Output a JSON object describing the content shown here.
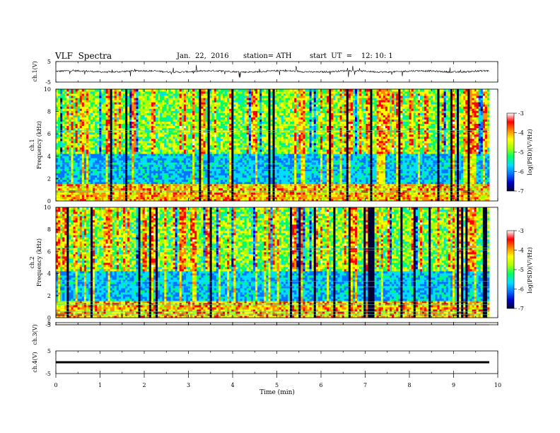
{
  "header": {
    "title": "VLF  Spectra",
    "date": "Jan.  22,  2016",
    "station": "station= ATH",
    "start": "start  UT  =    12: 10: 1"
  },
  "axes": {
    "ch1_wave_label": "ch.1(V)",
    "ch1_spec_label": "ch.1\nFrequency  (kHz)",
    "ch2_spec_label": "ch.2\nFrequency  (kHz)",
    "ch3_wave_label": "ch.3(V)",
    "ch4_wave_label": "ch.4(V)",
    "xlabel": "Time  (min)",
    "colorbar_label": "log(PSD)(V²/Hz)"
  },
  "colors": {
    "colormap": [
      "#000033",
      "#0000cc",
      "#0077ff",
      "#00ddff",
      "#00ff66",
      "#aaff00",
      "#ffff00",
      "#ff8800",
      "#ff0000",
      "#ffffff"
    ],
    "trace": "#000000"
  },
  "chart_data": [
    {
      "type": "line",
      "panel": "ch1-waveform",
      "ylabel": "ch.1(V)",
      "ylim": [
        -5,
        5
      ],
      "yticks": [
        "5",
        "-5"
      ],
      "xlim": [
        0,
        10
      ],
      "duration_min": 9.8,
      "series": [
        {
          "mean": 0.2,
          "noise_amplitude": 0.8,
          "spikes": true
        }
      ]
    },
    {
      "type": "heatmap",
      "panel": "ch1-spectrogram",
      "ylabel": "Frequency  (kHz)",
      "ylim": [
        0,
        10
      ],
      "yticks": [
        "0",
        "2",
        "4",
        "6",
        "8",
        "10"
      ],
      "xlim": [
        0,
        10
      ],
      "zlim": [
        -7,
        -3
      ],
      "colorbar_ticks": [
        "-3",
        "-4",
        "-5",
        "-6",
        "-7"
      ],
      "colorbar_label": "log(PSD)(V²/Hz)"
    },
    {
      "type": "heatmap",
      "panel": "ch2-spectrogram",
      "ylabel": "Frequency  (kHz)",
      "ylim": [
        0,
        10
      ],
      "yticks": [
        "0",
        "2",
        "4",
        "6",
        "8",
        "10"
      ],
      "xlim": [
        0,
        10
      ],
      "zlim": [
        -7,
        -3
      ],
      "colorbar_ticks": [
        "-3",
        "-4",
        "-5",
        "-6",
        "-7"
      ],
      "colorbar_label": "log(PSD)(V²/Hz)"
    },
    {
      "type": "line",
      "panel": "ch3-waveform",
      "ylabel": "ch.3(V)",
      "ylim": [
        -5,
        5
      ],
      "yticks": [
        "5",
        "-5"
      ],
      "xlim": [
        0,
        10
      ],
      "series": [
        {
          "values": [
            -5,
            -5
          ]
        }
      ]
    },
    {
      "type": "line",
      "panel": "ch4-waveform",
      "ylabel": "ch.4(V)",
      "ylim": [
        -5,
        5
      ],
      "yticks": [
        "5",
        "-5"
      ],
      "xlim": [
        0,
        10
      ],
      "series": [
        {
          "values": [
            0,
            0
          ]
        }
      ]
    },
    {
      "type": "line",
      "panel": "time-axis",
      "xlabel": "Time  (min)",
      "xlim": [
        0,
        10
      ],
      "xticks": [
        "0",
        "1",
        "2",
        "3",
        "4",
        "5",
        "6",
        "7",
        "8",
        "9",
        "10"
      ]
    }
  ]
}
